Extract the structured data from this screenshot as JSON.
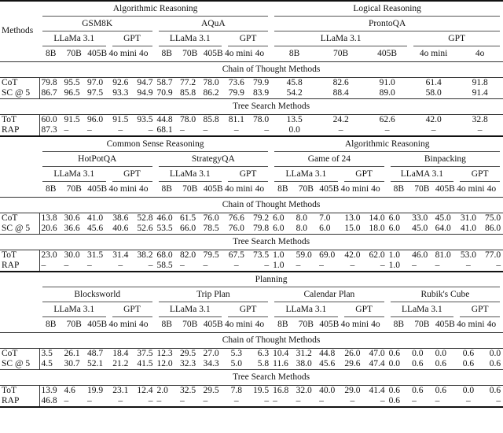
{
  "table": {
    "method_header": "Methods",
    "section_labels": {
      "cot": "Chain of Thought Methods",
      "tree": "Tree Search Methods"
    },
    "blocks": [
      {
        "groups": [
          {
            "category": "Algorithmic Reasoning",
            "datasets": [
              {
                "name": "GSM8K",
                "families": [
                  {
                    "name": "LLaMa 3.1",
                    "sizes": [
                      "8B",
                      "70B",
                      "405B"
                    ]
                  },
                  {
                    "name": "GPT",
                    "sizes": [
                      "4o mini",
                      "4o"
                    ]
                  }
                ]
              },
              {
                "name": "AQuA",
                "families": [
                  {
                    "name": "LLaMa 3.1",
                    "sizes": [
                      "8B",
                      "70B",
                      "405B"
                    ]
                  },
                  {
                    "name": "GPT",
                    "sizes": [
                      "4o mini",
                      "4o"
                    ]
                  }
                ]
              }
            ]
          },
          {
            "category": "Logical Reasoning",
            "datasets": [
              {
                "name": "ProntoQA",
                "families": [
                  {
                    "name": "LLaMa 3.1",
                    "sizes": [
                      "8B",
                      "70B",
                      "405B"
                    ]
                  },
                  {
                    "name": "GPT",
                    "sizes": [
                      "4o mini",
                      "4o"
                    ]
                  }
                ]
              }
            ]
          }
        ],
        "cot_rows": [
          {
            "method": "CoT",
            "values": [
              "79.8",
              "95.5",
              "97.0",
              "92.6",
              "94.7",
              "58.7",
              "77.2",
              "78.0",
              "73.6",
              "79.9",
              "45.8",
              "82.6",
              "91.0",
              "61.4",
              "91.8"
            ]
          },
          {
            "method": "SC @ 5",
            "values": [
              "86.7",
              "96.5",
              "97.5",
              "93.3",
              "94.9",
              "70.9",
              "85.8",
              "86.2",
              "79.9",
              "83.9",
              "54.2",
              "88.4",
              "89.0",
              "58.0",
              "91.4"
            ]
          }
        ],
        "tree_rows": [
          {
            "method": "ToT",
            "values": [
              "60.0",
              "91.5",
              "96.0",
              "91.5",
              "93.5",
              "44.8",
              "78.0",
              "85.8",
              "81.1",
              "78.0",
              "13.5",
              "24.2",
              "62.6",
              "42.0",
              "32.8"
            ]
          },
          {
            "method": "RAP",
            "values": [
              "87.3",
              "–",
              "–",
              "–",
              "–",
              "68.1",
              "–",
              "–",
              "–",
              "–",
              "0.0",
              "–",
              "–",
              "–",
              "–"
            ]
          }
        ]
      },
      {
        "groups": [
          {
            "category": "Common Sense Reasoning",
            "datasets": [
              {
                "name": "HotPotQA",
                "families": [
                  {
                    "name": "LLaMa 3.1",
                    "sizes": [
                      "8B",
                      "70B",
                      "405B"
                    ]
                  },
                  {
                    "name": "GPT",
                    "sizes": [
                      "4o mini",
                      "4o"
                    ]
                  }
                ]
              },
              {
                "name": "StrategyQA",
                "families": [
                  {
                    "name": "LLaMa 3.1",
                    "sizes": [
                      "8B",
                      "70B",
                      "405B"
                    ]
                  },
                  {
                    "name": "GPT",
                    "sizes": [
                      "4o mini",
                      "4o"
                    ]
                  }
                ]
              }
            ]
          },
          {
            "category": "Algorithmic Reasoning",
            "datasets": [
              {
                "name": "Game of 24",
                "families": [
                  {
                    "name": "LLaMa 3.1",
                    "sizes": [
                      "8B",
                      "70B",
                      "405B"
                    ]
                  },
                  {
                    "name": "GPT",
                    "sizes": [
                      "4o mini",
                      "4o"
                    ]
                  }
                ]
              },
              {
                "name": "Binpacking",
                "families": [
                  {
                    "name": "LLaMA 3.1",
                    "sizes": [
                      "8B",
                      "70B",
                      "405B"
                    ]
                  },
                  {
                    "name": "GPT",
                    "sizes": [
                      "4o mini",
                      "4o"
                    ]
                  }
                ]
              }
            ]
          }
        ],
        "cot_rows": [
          {
            "method": "CoT",
            "values": [
              "13.8",
              "30.6",
              "41.0",
              "38.6",
              "52.8",
              "46.0",
              "61.5",
              "76.0",
              "76.6",
              "79.2",
              "6.0",
              "8.0",
              "7.0",
              "13.0",
              "14.0",
              "6.0",
              "33.0",
              "45.0",
              "31.0",
              "75.0"
            ]
          },
          {
            "method": "SC @ 5",
            "values": [
              "20.6",
              "36.6",
              "45.6",
              "40.6",
              "52.6",
              "53.5",
              "66.0",
              "78.5",
              "76.0",
              "79.8",
              "6.0",
              "8.0",
              "6.0",
              "15.0",
              "18.0",
              "6.0",
              "45.0",
              "64.0",
              "41.0",
              "86.0"
            ]
          }
        ],
        "tree_rows": [
          {
            "method": "ToT",
            "values": [
              "23.0",
              "30.0",
              "31.5",
              "31.4",
              "38.2",
              "68.0",
              "82.0",
              "79.5",
              "67.5",
              "73.5",
              "1.0",
              "59.0",
              "69.0",
              "42.0",
              "62.0",
              "1.0",
              "46.0",
              "81.0",
              "53.0",
              "77.0"
            ]
          },
          {
            "method": "RAP",
            "values": [
              "–",
              "–",
              "–",
              "–",
              "–",
              "58.5",
              "–",
              "–",
              "–",
              "–",
              "1.0",
              "–",
              "–",
              "–",
              "–",
              "1.0",
              "–",
              "–",
              "–",
              "–"
            ]
          }
        ]
      },
      {
        "groups": [
          {
            "category": "Planning",
            "datasets": [
              {
                "name": "Blocksworld",
                "families": [
                  {
                    "name": "LLaMa 3.1",
                    "sizes": [
                      "8B",
                      "70B",
                      "405B"
                    ]
                  },
                  {
                    "name": "GPT",
                    "sizes": [
                      "4o mini",
                      "4o"
                    ]
                  }
                ]
              },
              {
                "name": "Trip Plan",
                "families": [
                  {
                    "name": "LLaMa 3.1",
                    "sizes": [
                      "8B",
                      "70B",
                      "405B"
                    ]
                  },
                  {
                    "name": "GPT",
                    "sizes": [
                      "4o mini",
                      "4o"
                    ]
                  }
                ]
              },
              {
                "name": "Calendar Plan",
                "families": [
                  {
                    "name": "LLaMa 3.1",
                    "sizes": [
                      "8B",
                      "70B",
                      "405B"
                    ]
                  },
                  {
                    "name": "GPT",
                    "sizes": [
                      "4o mini",
                      "4o"
                    ]
                  }
                ]
              },
              {
                "name": "Rubik's Cube",
                "families": [
                  {
                    "name": "LLaMa 3.1",
                    "sizes": [
                      "8B",
                      "70B",
                      "405B"
                    ]
                  },
                  {
                    "name": "GPT",
                    "sizes": [
                      "4o mini",
                      "4o"
                    ]
                  }
                ]
              }
            ]
          }
        ],
        "cot_rows": [
          {
            "method": "CoT",
            "values": [
              "3.5",
              "26.1",
              "48.7",
              "18.4",
              "37.5",
              "12.3",
              "29.5",
              "27.0",
              "5.3",
              "6.3",
              "10.4",
              "31.2",
              "44.8",
              "26.0",
              "47.0",
              "0.6",
              "0.0",
              "0.0",
              "0.6",
              "0.0"
            ]
          },
          {
            "method": "SC @ 5",
            "values": [
              "4.5",
              "30.7",
              "52.1",
              "21.2",
              "41.5",
              "12.0",
              "32.3",
              "34.3",
              "5.0",
              "5.8",
              "11.6",
              "38.0",
              "45.6",
              "29.6",
              "47.4",
              "0.0",
              "0.6",
              "0.6",
              "0.6",
              "0.6"
            ]
          }
        ],
        "tree_rows": [
          {
            "method": "ToT",
            "values": [
              "13.9",
              "4.6",
              "19.9",
              "23.1",
              "12.4",
              "2.0",
              "32.5",
              "29.5",
              "7.8",
              "19.5",
              "16.8",
              "32.0",
              "40.0",
              "29.0",
              "41.4",
              "0.6",
              "0.6",
              "0.6",
              "0.0",
              "0.6"
            ]
          },
          {
            "method": "RAP",
            "values": [
              "46.8",
              "–",
              "–",
              "–",
              "–",
              "–",
              "–",
              "–",
              "–",
              "–",
              "–",
              "–",
              "–",
              "–",
              "–",
              "0.6",
              "–",
              "–",
              "–",
              "–"
            ]
          }
        ]
      }
    ]
  }
}
